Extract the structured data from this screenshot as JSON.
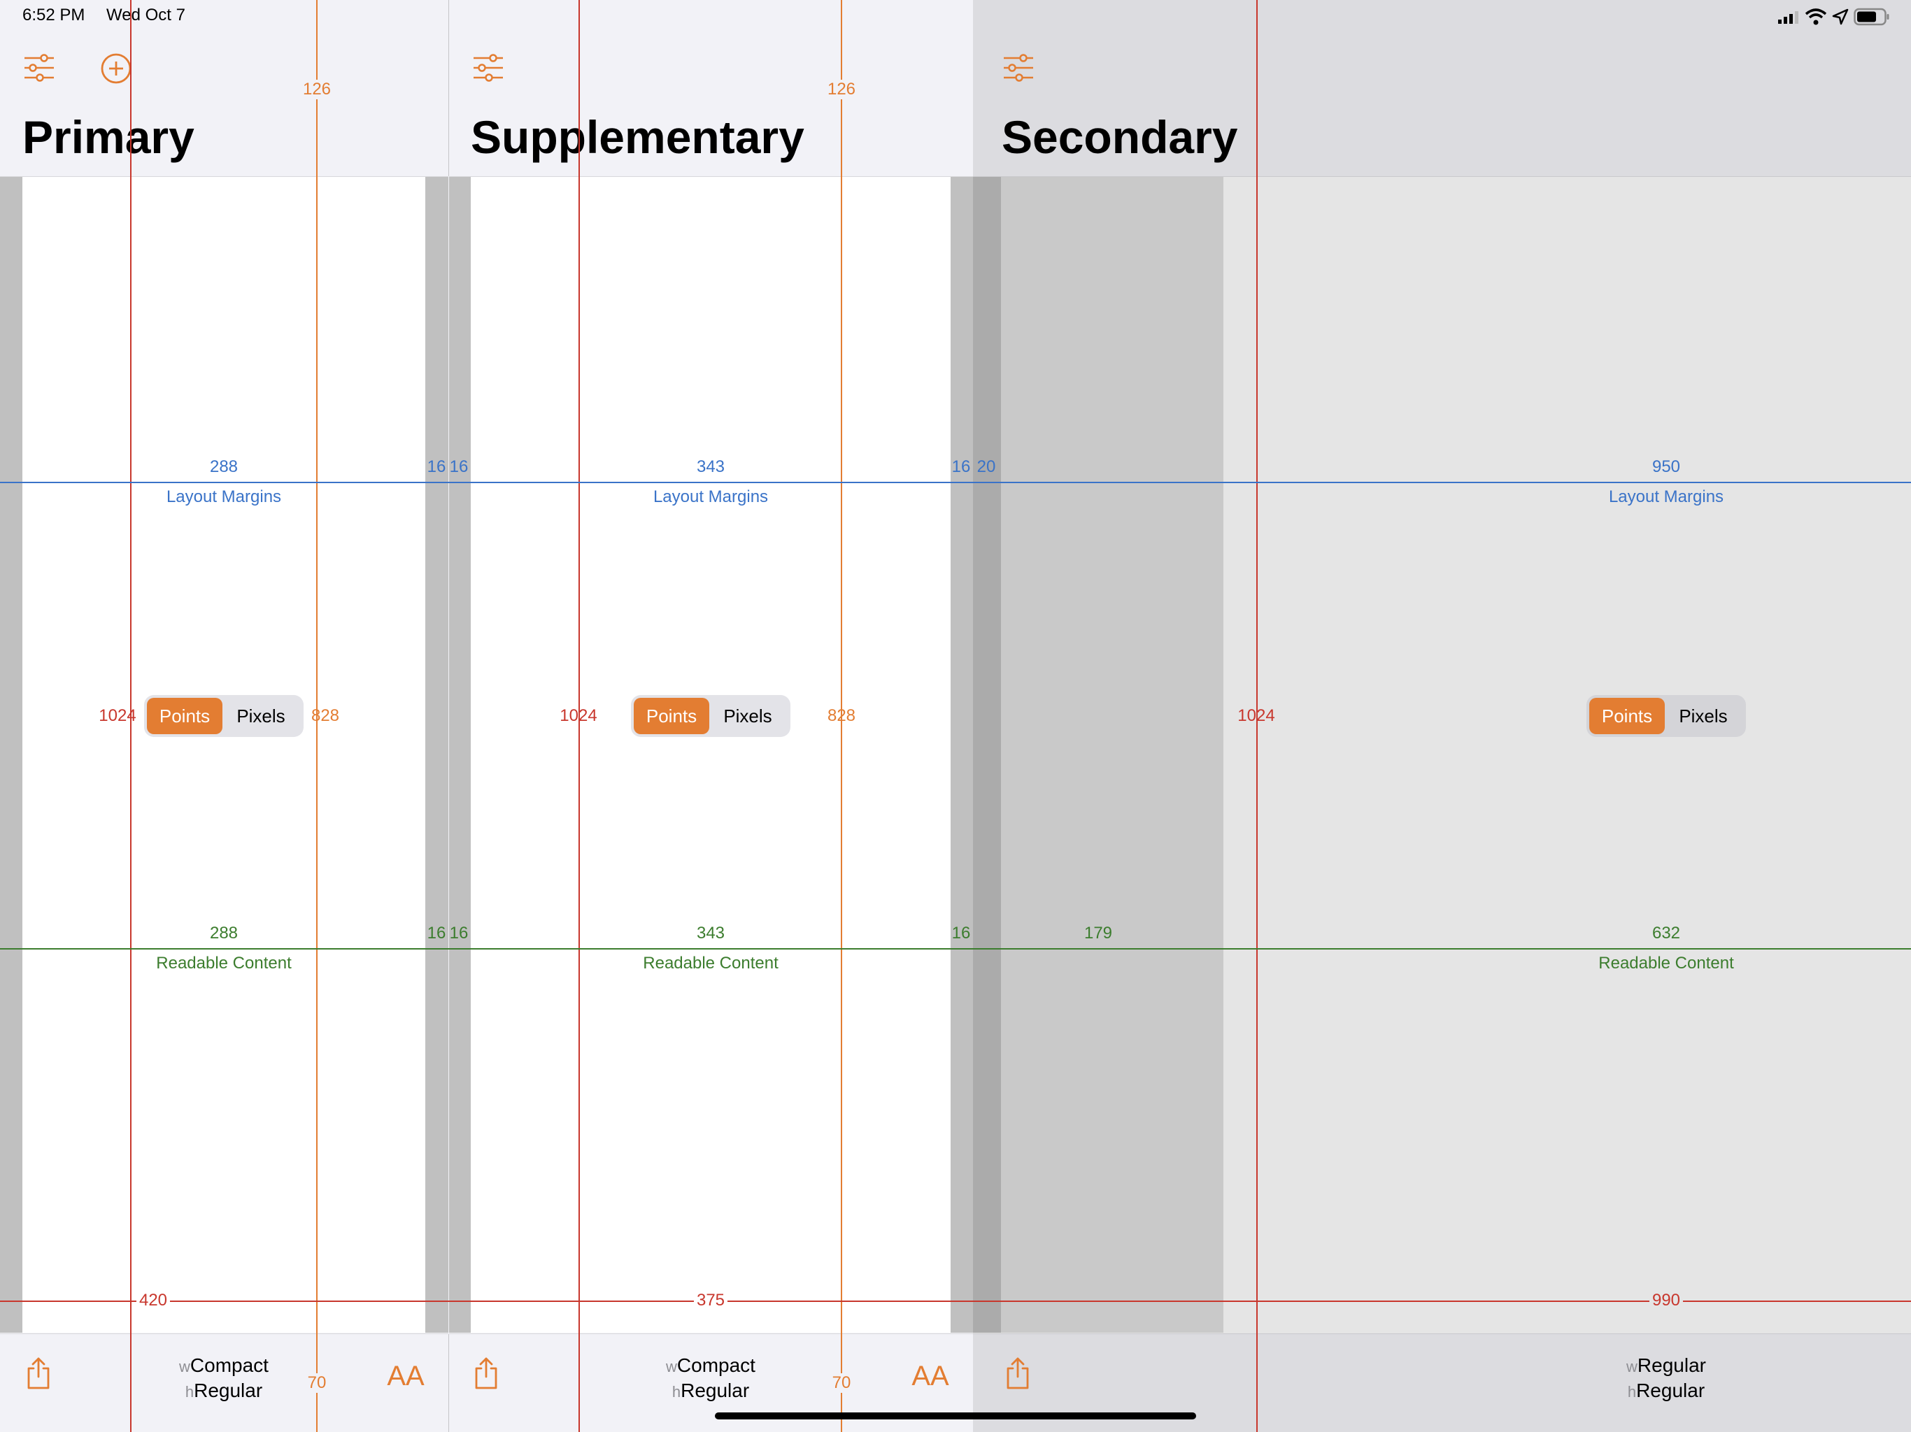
{
  "status": {
    "time": "6:52 PM",
    "date": "Wed Oct 7"
  },
  "columns": {
    "primary": {
      "title": "Primary",
      "height_pts": "1024",
      "height_px": "828",
      "nav_height": "126",
      "toolbar_height": "70",
      "layout_margin_content": "288",
      "layout_margin_right": "16",
      "layout_margin_left_next": "16",
      "readable_content": "288",
      "readable_right": "16",
      "readable_left_next": "16",
      "width": "420",
      "size_class_w_prefix": "w",
      "size_class_w": "Compact",
      "size_class_h_prefix": "h",
      "size_class_h": "Regular"
    },
    "supplementary": {
      "title": "Supplementary",
      "height_pts": "1024",
      "height_px": "828",
      "nav_height": "126",
      "toolbar_height": "70",
      "layout_margin_content": "343",
      "layout_margin_right": "16",
      "layout_margin_left_next": "20",
      "readable_content": "343",
      "readable_right": "16",
      "width": "375",
      "size_class_w_prefix": "w",
      "size_class_w": "Compact",
      "size_class_h_prefix": "h",
      "size_class_h": "Regular"
    },
    "secondary": {
      "title": "Secondary",
      "height_pts": "1024",
      "layout_margin_content": "950",
      "readable_left": "179",
      "readable_content": "632",
      "width": "990",
      "size_class_w_prefix": "w",
      "size_class_w": "Regular",
      "size_class_h_prefix": "h",
      "size_class_h": "Regular"
    }
  },
  "labels": {
    "layout_margins": "Layout Margins",
    "readable_content": "Readable Content"
  },
  "segmented": {
    "points": "Points",
    "pixels": "Pixels",
    "selected": "Points"
  },
  "colors": {
    "accent": "#e37d32",
    "layout": "#3a73c8",
    "readable": "#3c7d2e",
    "frame": "#c8372d"
  },
  "icons": {
    "filter": "sliders-icon",
    "add": "plus-circle-icon",
    "share": "share-icon",
    "text_size": "text-size-icon",
    "signal": "cellular-signal-icon",
    "wifi": "wifi-icon",
    "location": "location-arrow-icon",
    "battery": "battery-icon",
    "text_size_glyph": "AA"
  }
}
